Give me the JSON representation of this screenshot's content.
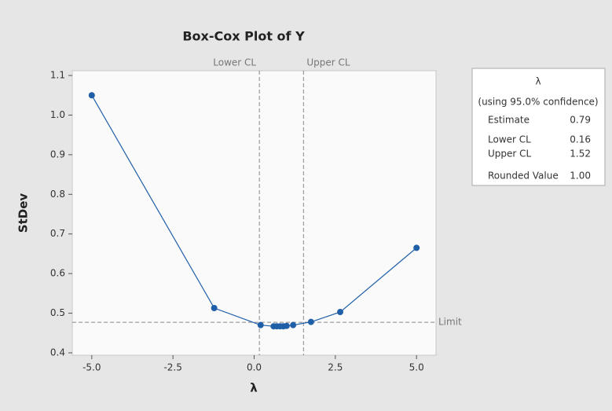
{
  "chart_data": {
    "type": "line",
    "title": "Box-Cox Plot of Y",
    "x_label": "λ",
    "y_label": "StDev",
    "x": [
      -5,
      -1.23,
      0.2,
      0.6,
      0.7,
      0.8,
      0.9,
      1.0,
      1.2,
      1.75,
      2.65,
      5
    ],
    "series": [
      {
        "name": "StDev",
        "color": "#1f5fa8",
        "values": [
          1.05,
          0.513,
          0.47,
          0.467,
          0.467,
          0.467,
          0.467,
          0.468,
          0.47,
          0.478,
          0.503,
          0.665
        ]
      }
    ],
    "xlim": [
      -5.6,
      5.6
    ],
    "xticks": [
      {
        "value": -5,
        "label": "-5.0"
      },
      {
        "value": -2.5,
        "label": "-2.5"
      },
      {
        "value": 0,
        "label": "0.0"
      },
      {
        "value": 2.5,
        "label": "2.5"
      },
      {
        "value": 5,
        "label": "5.0"
      }
    ],
    "ylim": [
      0.394,
      1.112
    ],
    "yticks": [
      0.4,
      0.5,
      0.6,
      0.7,
      0.8,
      0.9,
      {
        "value": 1,
        "label": "1.0"
      },
      1.1
    ],
    "lower_cl": {
      "label": "Lower CL",
      "value": 0.16
    },
    "upper_cl": {
      "label": "Upper CL",
      "value": 1.52
    },
    "limit": {
      "label": "Limit",
      "value": 0.477
    },
    "stats_box": {
      "title": "λ",
      "subtitle": "(using 95.0% confidence)",
      "rows": [
        [
          "Estimate",
          "0.79"
        ],
        [
          "Lower CL",
          "0.16"
        ],
        [
          "Upper CL",
          "1.52"
        ],
        [
          "Rounded Value",
          "1.00"
        ]
      ]
    }
  }
}
